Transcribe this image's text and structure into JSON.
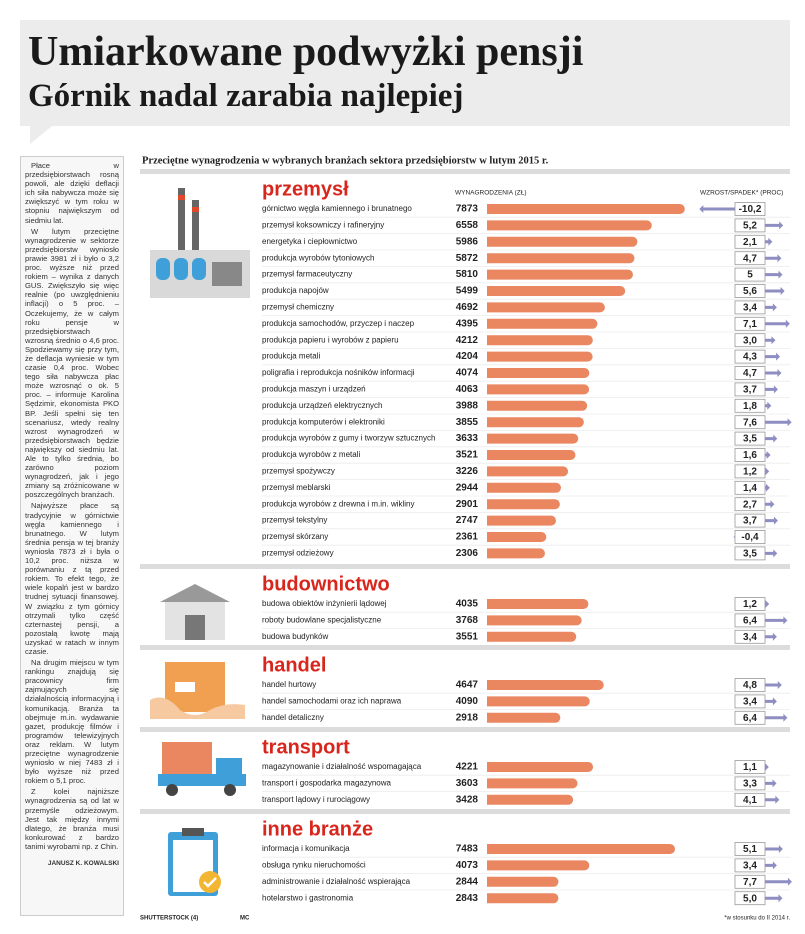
{
  "header": {
    "title_line1": "Umiarkowane podwyżki pensji",
    "title_line2": "Górnik nadal zarabia najlepiej"
  },
  "article": {
    "paragraphs": [
      "Płace w przedsiębiorstwach rosną powoli, ale dzięki deflacji ich siła nabywcza może się zwiększyć w tym roku w stopniu największym od siedmiu lat.",
      "W lutym przeciętne wynagrodzenie w sektorze przedsiębiorstw wyniosło prawie 3981 zł i było o 3,2 proc. wyższe niż przed rokiem – wynika z danych GUS. Zwiększyło się więc realnie (po uwzględnieniu inflacji) o 5 proc. – Oczekujemy, że w całym roku pensje w przedsiębiorstwach wzrosną średnio o 4,6 proc. Spodziewamy się przy tym, że deflacja wyniesie w tym czasie 0,4 proc. Wobec tego siła nabywcza płac może wzrosnąć o ok. 5 proc. – informuje Karolina Sędzimir, ekonomista PKO BP. Jeśli spełni się ten scenariusz, wtedy realny wzrost wynagrodzeń w przedsiębiorstwach będzie największy od siedmiu lat. Ale to tylko średnia, bo zarówno poziom wynagrodzeń, jak i jego zmiany są zróżnicowane w poszczególnych branżach.",
      "Najwyższe płace są tradycyjnie w górnictwie węgla kamiennego i brunatnego. W lutym średnia pensja w tej branży wyniosła 7873 zł i była o 10,2 proc. niższa w porównaniu z tą przed rokiem. To efekt tego, że wiele kopalń jest w bardzo trudnej sytuacji finansowej. W związku z tym górnicy otrzymali tylko część czternastej pensji, a pozostałą kwotę mają uzyskać w ratach w innym czasie.",
      "Na drugim miejscu w tym rankingu znajdują się pracownicy firm zajmujących się działalnością informacyjną i komunikacją. Branża ta obejmuje m.in. wydawanie gazet, produkcję filmów i programów telewizyjnych oraz reklam. W lutym przeciętne wynagrodzenie wyniosło w niej 7483 zł i było wyższe niż przed rokiem o 5,1 proc.",
      "Z kolei najniższe wynagrodzenia są od lat w przemyśle odzieżowym. Jest tak między innymi dlatego, że branża musi konkurować z bardzo tanimi wyrobami np. z Chin."
    ],
    "author": "JANUSZ K. KOWALSKI"
  },
  "chart_data": {
    "type": "bar",
    "title": "Przeciętne wynagrodzenia w wybranych branżach sektora przedsiębiorstw w lutym 2015 r.",
    "value_header": "WYNAGRODZENIA (ZŁ)",
    "change_header": "WZROST/SPADEK* (PROC)",
    "xlim": [
      0,
      8000
    ],
    "color": "#ea8660",
    "change_color": "#8e8ec2",
    "groups": [
      {
        "name": "przemysł",
        "categories": [
          "górnictwo węgla kamiennego i brunatnego",
          "przemysł koksowniczy i rafineryjny",
          "energetyka i ciepłownictwo",
          "produkcja wyrobów tytoniowych",
          "przemysł farmaceutyczny",
          "produkcja napojów",
          "przemysł chemiczny",
          "produkcja samochodów, przyczep i naczep",
          "produkcja papieru i wyrobów z papieru",
          "produkcja metali",
          "poligrafia i reprodukcja nośników informacji",
          "produkcja maszyn i urządzeń",
          "produkcja urządzeń elektrycznych",
          "produkcja komputerów i elektroniki",
          "produkcja wyrobów z gumy i tworzyw sztucznych",
          "produkcja wyrobów z metali",
          "przemysł spożywczy",
          "przemysł meblarski",
          "produkcja wyrobów z drewna i m.in. wikliny",
          "przemysł tekstylny",
          "przemysł skórzany",
          "przemysł odzieżowy"
        ],
        "values": [
          7873,
          6558,
          5986,
          5872,
          5810,
          5499,
          4692,
          4395,
          4212,
          4204,
          4074,
          4063,
          3988,
          3855,
          3633,
          3521,
          3226,
          2944,
          2901,
          2747,
          2361,
          2306
        ],
        "changes": [
          -10.2,
          5.2,
          2.1,
          4.7,
          5,
          5.6,
          3.4,
          7.1,
          3.0,
          4.3,
          4.7,
          3.7,
          1.8,
          7.6,
          3.5,
          1.6,
          1.2,
          1.4,
          2.7,
          3.7,
          -0.4,
          3.5
        ],
        "change_labels": [
          "-10,2",
          "5,2",
          "2,1",
          "4,7",
          "5",
          "5,6",
          "3,4",
          "7,1",
          "3,0",
          "4,3",
          "4,7",
          "3,7",
          "1,8",
          "7,6",
          "3,5",
          "1,6",
          "1,2",
          "1,4",
          "2,7",
          "3,7",
          "-0,4",
          "3,5"
        ]
      },
      {
        "name": "budownictwo",
        "categories": [
          "budowa obiektów inżynierii lądowej",
          "roboty budowlane specjalistyczne",
          "budowa budynków"
        ],
        "values": [
          4035,
          3768,
          3551
        ],
        "changes": [
          1.2,
          6.4,
          3.4
        ],
        "change_labels": [
          "1,2",
          "6,4",
          "3,4"
        ]
      },
      {
        "name": "handel",
        "categories": [
          "handel hurtowy",
          "handel samochodami oraz ich naprawa",
          "handel detaliczny"
        ],
        "values": [
          4647,
          4090,
          2918
        ],
        "changes": [
          4.8,
          3.4,
          6.4
        ],
        "change_labels": [
          "4,8",
          "3,4",
          "6,4"
        ]
      },
      {
        "name": "transport",
        "categories": [
          "magazynowanie i działalność wspomagająca",
          "transport i gospodarka magazynowa",
          "transport lądowy i rurociągowy"
        ],
        "values": [
          4221,
          3603,
          3428
        ],
        "changes": [
          1.1,
          3.3,
          4.1
        ],
        "change_labels": [
          "1,1",
          "3,3",
          "4,1"
        ]
      },
      {
        "name": "inne branże",
        "categories": [
          "informacja i komunikacja",
          "obsługa rynku nieruchomości",
          "administrowanie i działalność wspierająca",
          "hotelarstwo i gastronomia"
        ],
        "values": [
          7483,
          4073,
          2844,
          2843
        ],
        "changes": [
          5.1,
          3.4,
          7.7,
          5.0
        ],
        "change_labels": [
          "5,1",
          "3,4",
          "7,7",
          "5,0"
        ]
      }
    ],
    "footnote": "*w stosunku do II 2014 r.",
    "credit": "SHUTTERSTOCK (4)",
    "author_initials": "MC"
  }
}
